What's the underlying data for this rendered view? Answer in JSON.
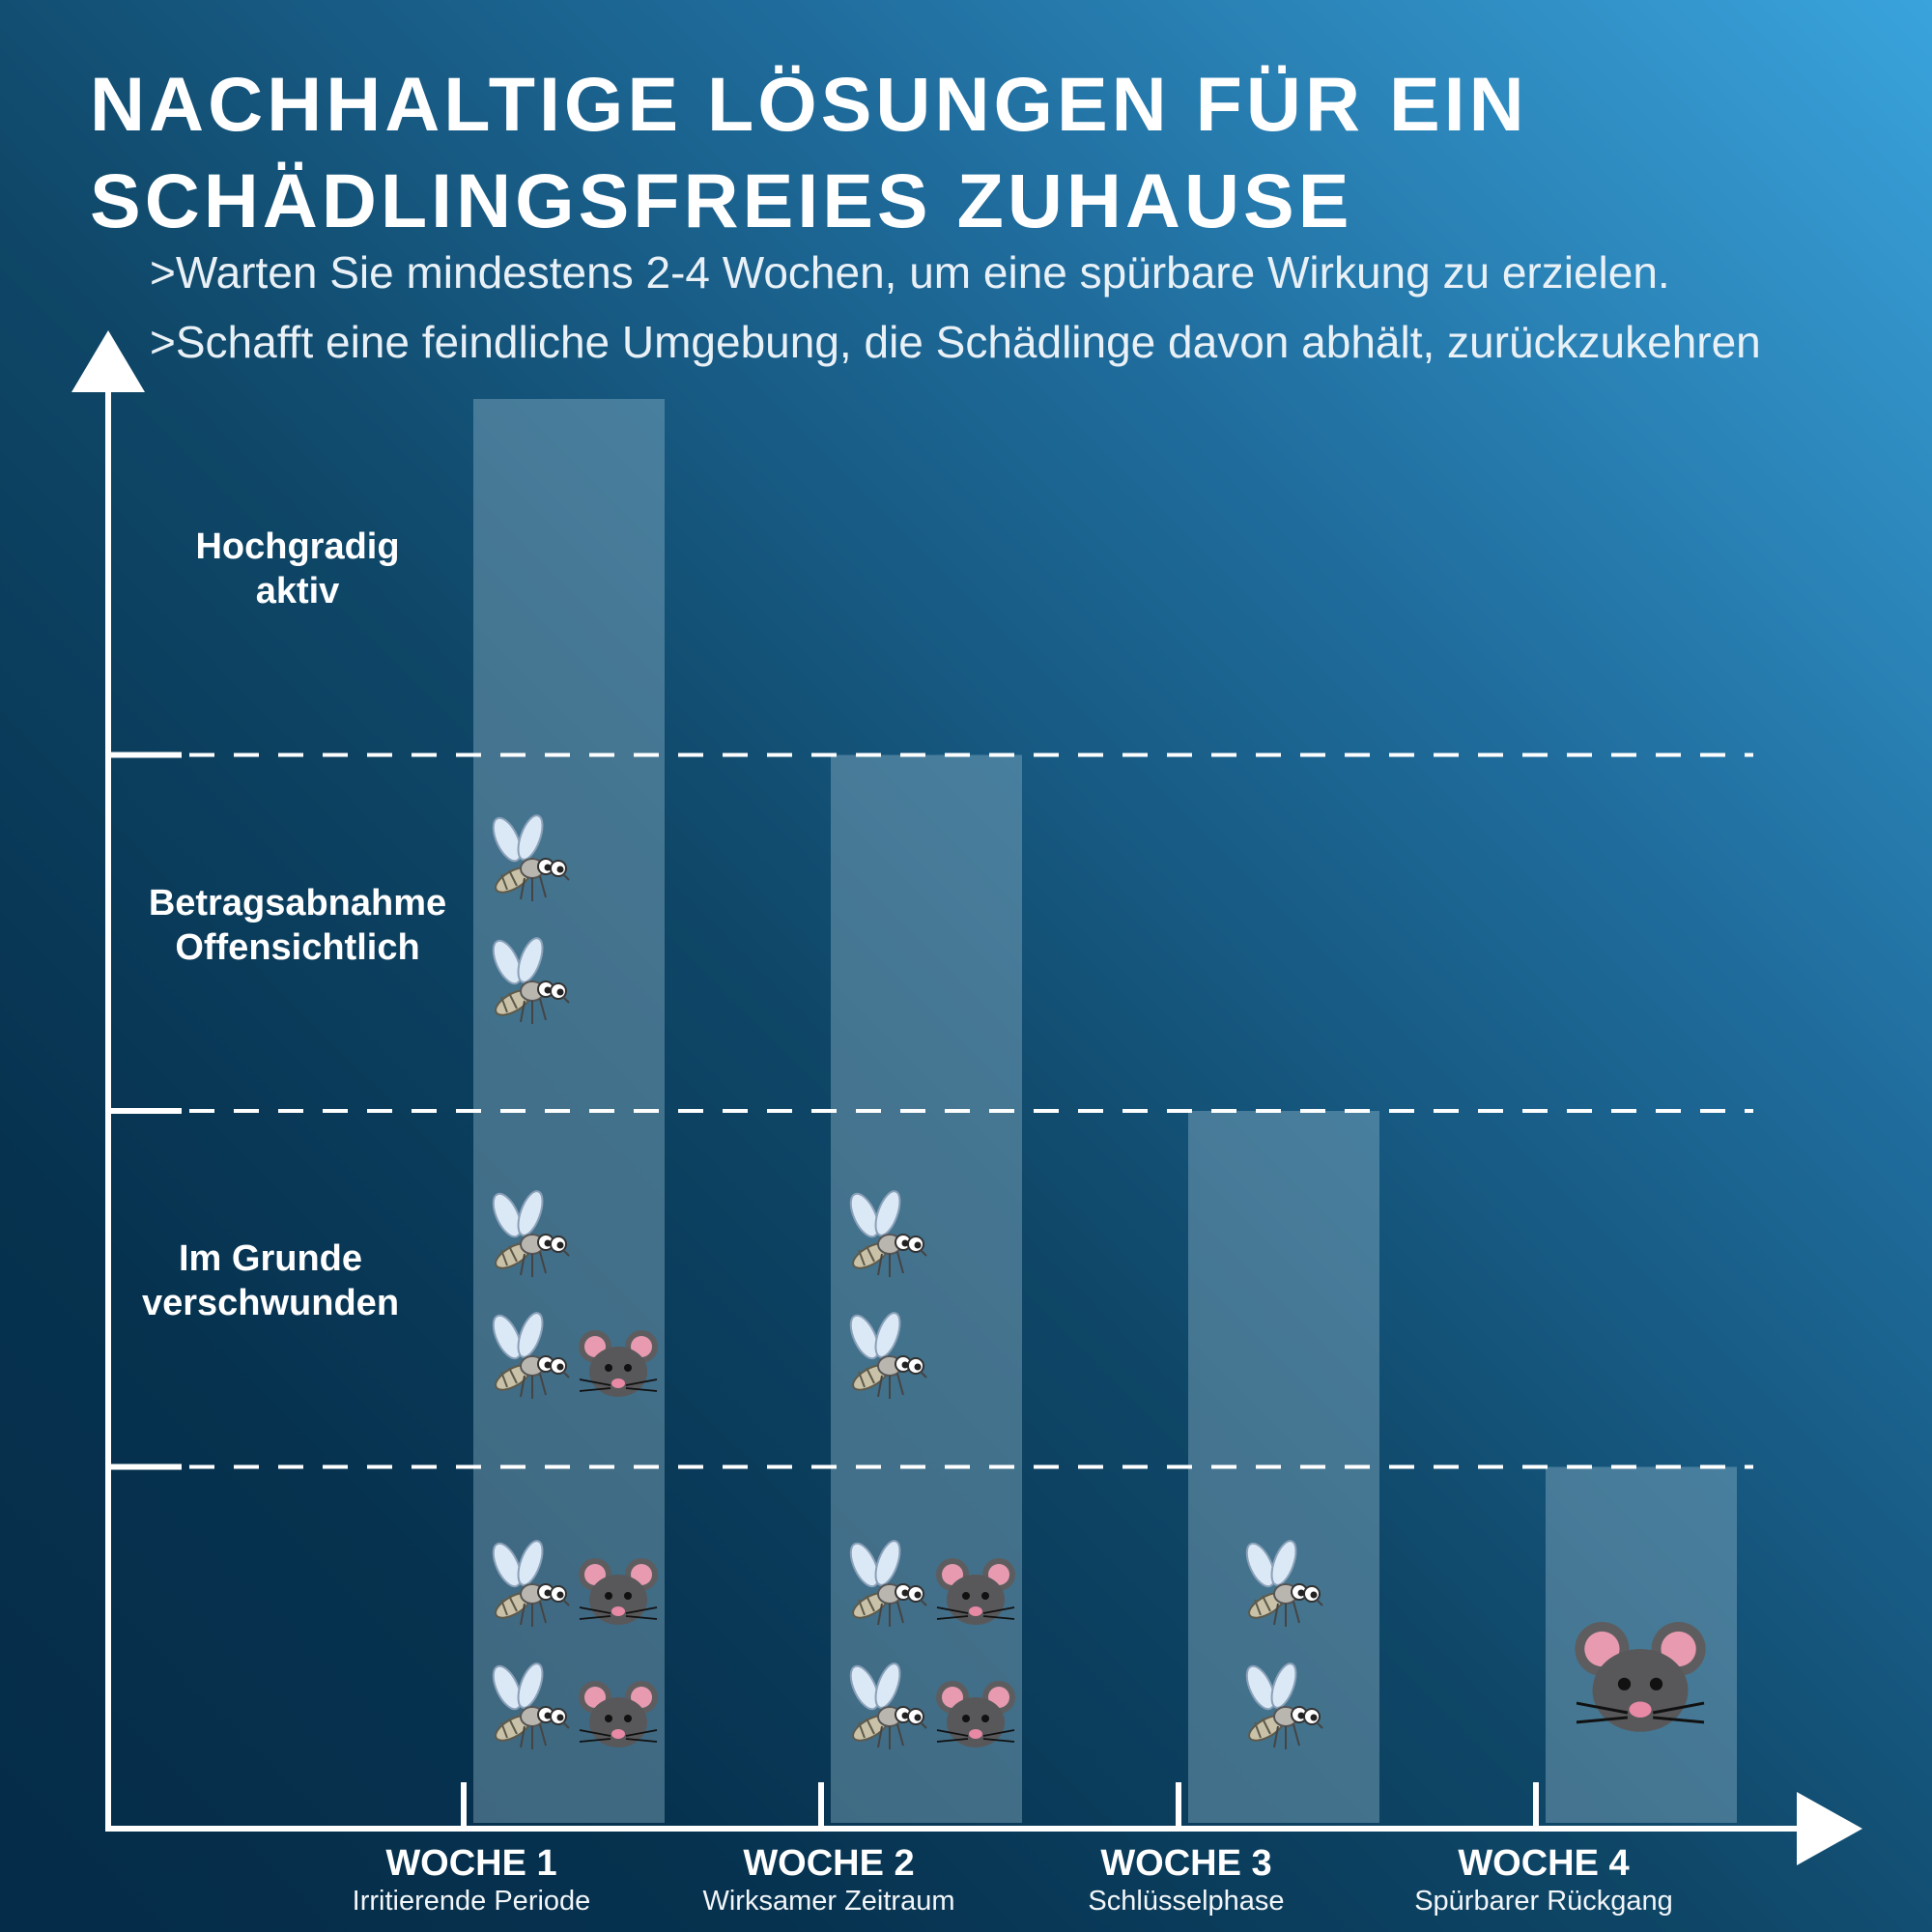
{
  "title_line1": "NACHHALTIGE LÖSUNGEN FÜR EIN",
  "title_line2": "SCHÄDLINGSFREIES ZUHAUSE",
  "notes": [
    ">Warten Sie mindestens 2-4 Wochen, um eine spürbare Wirkung zu erzielen.",
    ">Schafft eine feindliche Umgebung, die Schädlinge davon abhält, zurückzukehren"
  ],
  "chart_data": {
    "type": "bar",
    "categories": [
      "WOCHE 1",
      "WOCHE 2",
      "WOCHE 3",
      "WOCHE 4"
    ],
    "subcategories": [
      "Irritierende Periode",
      "Wirksamer Zeitraum",
      "Schlüsselphase",
      "Spürbarer Rückgang"
    ],
    "values": [
      4,
      3,
      2,
      1
    ],
    "ylim": [
      0,
      4
    ],
    "y_levels": [
      {
        "value": 1.5,
        "label": [
          "Im Grunde",
          "verschwunden"
        ]
      },
      {
        "value": 2.5,
        "label": [
          "Betragsabnahme",
          "Offensichtlich"
        ]
      },
      {
        "value": 3.5,
        "label": [
          "Hochgradig",
          "aktiv"
        ]
      }
    ],
    "gridlines": "dashed",
    "pest_icons": [
      {
        "mosquito": 6,
        "mouse": 3
      },
      {
        "mosquito": 4,
        "mouse": 2
      },
      {
        "mosquito": 2,
        "mouse": 0
      },
      {
        "mosquito": 0,
        "mouse": 1
      }
    ],
    "colors": {
      "bar": "#8fb6c8",
      "axis": "#ffffff"
    }
  }
}
